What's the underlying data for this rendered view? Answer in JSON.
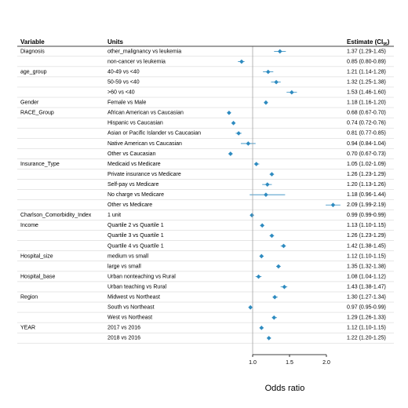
{
  "chart_data": {
    "type": "forest",
    "headers": {
      "variable": "Variable",
      "units": "Units",
      "estimate": "Estimate (CI",
      "estimate_sub": "95"
    },
    "xlabel": "Odds ratio",
    "xlim": [
      0.6,
      2.2
    ],
    "xticks": [
      1.0,
      1.5,
      2.0
    ],
    "xtick_labels": [
      "1.0",
      "1.5",
      "2.0"
    ],
    "reference_line": 1.0,
    "marker_color": "#2e8bc0",
    "rows": [
      {
        "variable": "Diagnosis",
        "unit": "other_malignancy vs leukemia",
        "or": 1.37,
        "lo": 1.29,
        "hi": 1.45,
        "est": "1.37 (1.29-1.45)"
      },
      {
        "variable": "",
        "unit": "non-cancer vs leukemia",
        "or": 0.85,
        "lo": 0.8,
        "hi": 0.89,
        "est": "0.85 (0.80-0.89)"
      },
      {
        "variable": "age_group",
        "unit": "40-49 vs <40",
        "or": 1.21,
        "lo": 1.14,
        "hi": 1.28,
        "est": "1.21 (1.14-1.28)"
      },
      {
        "variable": "",
        "unit": "50-59 vs <40",
        "or": 1.32,
        "lo": 1.25,
        "hi": 1.38,
        "est": "1.32 (1.25-1.38)"
      },
      {
        "variable": "",
        "unit": ">60 vs <40",
        "or": 1.53,
        "lo": 1.46,
        "hi": 1.6,
        "est": "1.53 (1.46-1.60)"
      },
      {
        "variable": "Gender",
        "unit": "Female vs Male",
        "or": 1.18,
        "lo": 1.16,
        "hi": 1.2,
        "est": "1.18 (1.16-1.20)"
      },
      {
        "variable": "RACE_Group",
        "unit": "African American vs Caucasian",
        "or": 0.68,
        "lo": 0.67,
        "hi": 0.7,
        "est": "0.68 (0.67-0.70)"
      },
      {
        "variable": "",
        "unit": "Hispanic vs Caucasian",
        "or": 0.74,
        "lo": 0.72,
        "hi": 0.76,
        "est": "0.74 (0.72-0.76)"
      },
      {
        "variable": "",
        "unit": "Asian or Pacific Islander vs Caucasian",
        "or": 0.81,
        "lo": 0.77,
        "hi": 0.85,
        "est": "0.81 (0.77-0.85)"
      },
      {
        "variable": "",
        "unit": "Native American vs Caucasian",
        "or": 0.94,
        "lo": 0.84,
        "hi": 1.04,
        "est": "0.94 (0.84-1.04)"
      },
      {
        "variable": "",
        "unit": "Other vs Caucasian",
        "or": 0.7,
        "lo": 0.67,
        "hi": 0.73,
        "est": "0.70 (0.67-0.73)"
      },
      {
        "variable": "Insurance_Type",
        "unit": "Medicaid vs Medicare",
        "or": 1.05,
        "lo": 1.02,
        "hi": 1.09,
        "est": "1.05 (1.02-1.09)"
      },
      {
        "variable": "",
        "unit": "Private insurance vs Medicare",
        "or": 1.26,
        "lo": 1.23,
        "hi": 1.29,
        "est": "1.26 (1.23-1.29)"
      },
      {
        "variable": "",
        "unit": "Self-pay vs Medicare",
        "or": 1.2,
        "lo": 1.13,
        "hi": 1.26,
        "est": "1.20 (1.13-1.26)"
      },
      {
        "variable": "",
        "unit": "No charge vs Medicare",
        "or": 1.18,
        "lo": 0.96,
        "hi": 1.44,
        "est": "1.18 (0.96-1.44)"
      },
      {
        "variable": "",
        "unit": "Other vs Medicare",
        "or": 2.09,
        "lo": 1.99,
        "hi": 2.19,
        "est": "2.09 (1.99-2.19)"
      },
      {
        "variable": "Charlson_Comorbidity_Index",
        "unit": "1 unit",
        "or": 0.99,
        "lo": 0.99,
        "hi": 0.99,
        "est": "0.99 (0.99-0.99)"
      },
      {
        "variable": "Income",
        "unit": "Quartile 2 vs Quartile 1",
        "or": 1.13,
        "lo": 1.1,
        "hi": 1.15,
        "est": "1.13 (1.10-1.15)"
      },
      {
        "variable": "",
        "unit": "Quartile 3 vs Quartile 1",
        "or": 1.26,
        "lo": 1.23,
        "hi": 1.29,
        "est": "1.26 (1.23-1.29)"
      },
      {
        "variable": "",
        "unit": "Quartile 4 vs Quartile 1",
        "or": 1.42,
        "lo": 1.38,
        "hi": 1.45,
        "est": "1.42 (1.38-1.45)"
      },
      {
        "variable": "Hospital_size",
        "unit": "medium vs small",
        "or": 1.12,
        "lo": 1.1,
        "hi": 1.15,
        "est": "1.12 (1.10-1.15)"
      },
      {
        "variable": "",
        "unit": "large vs small",
        "or": 1.35,
        "lo": 1.32,
        "hi": 1.38,
        "est": "1.35 (1.32-1.38)"
      },
      {
        "variable": "Hospital_base",
        "unit": "Urban nonteaching vs Rural",
        "or": 1.08,
        "lo": 1.04,
        "hi": 1.12,
        "est": "1.08 (1.04-1.12)"
      },
      {
        "variable": "",
        "unit": "Urban teaching vs Rural",
        "or": 1.43,
        "lo": 1.38,
        "hi": 1.47,
        "est": "1.43 (1.38-1.47)"
      },
      {
        "variable": "Region",
        "unit": "Midwest vs Northeast",
        "or": 1.3,
        "lo": 1.27,
        "hi": 1.34,
        "est": "1.30 (1.27-1.34)"
      },
      {
        "variable": "",
        "unit": "South vs Northeast",
        "or": 0.97,
        "lo": 0.95,
        "hi": 0.99,
        "est": "0.97 (0.95-0.99)"
      },
      {
        "variable": "",
        "unit": "West vs Northeast",
        "or": 1.29,
        "lo": 1.26,
        "hi": 1.33,
        "est": "1.29 (1.26-1.33)"
      },
      {
        "variable": "YEAR",
        "unit": "2017 vs 2016",
        "or": 1.12,
        "lo": 1.1,
        "hi": 1.15,
        "est": "1.12 (1.10-1.15)"
      },
      {
        "variable": "",
        "unit": "2018 vs 2016",
        "or": 1.22,
        "lo": 1.2,
        "hi": 1.25,
        "est": "1.22 (1.20-1.25)"
      }
    ]
  }
}
